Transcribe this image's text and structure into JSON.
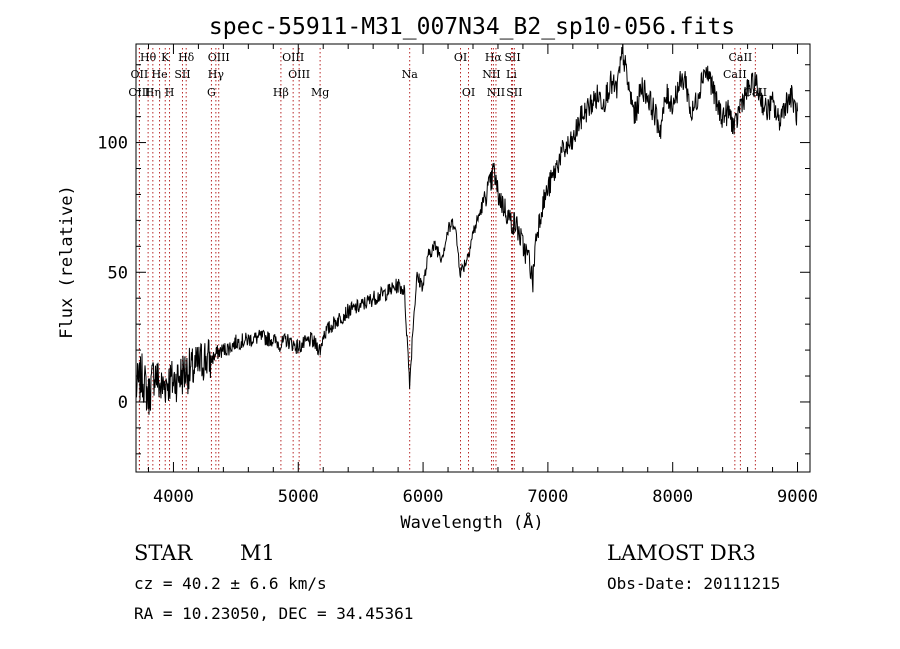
{
  "chart_data": {
    "type": "line",
    "title": "spec-55911-M31_007N34_B2_sp10-056.fits",
    "xlabel": "Wavelength (Å)",
    "ylabel": "Flux (relative)",
    "xlim": [
      3700,
      9100
    ],
    "ylim": [
      -27,
      138
    ],
    "x_ticks": [
      4000,
      5000,
      6000,
      7000,
      8000,
      9000
    ],
    "x_tick_labels": [
      "4000",
      "5000",
      "6000",
      "7000",
      "8000",
      "9000"
    ],
    "y_ticks": [
      0,
      50,
      100
    ],
    "y_tick_labels": [
      "0",
      "50",
      "100"
    ],
    "series": [
      {
        "name": "flux",
        "x": [
          3700,
          3750,
          3800,
          3850,
          3900,
          3950,
          4000,
          4050,
          4100,
          4150,
          4200,
          4250,
          4300,
          4350,
          4400,
          4450,
          4500,
          4600,
          4700,
          4800,
          4861,
          4900,
          5000,
          5100,
          5180,
          5200,
          5300,
          5400,
          5500,
          5600,
          5700,
          5800,
          5850,
          5893,
          5920,
          5950,
          6000,
          6050,
          6100,
          6150,
          6200,
          6250,
          6300,
          6350,
          6400,
          6450,
          6500,
          6550,
          6563,
          6600,
          6650,
          6700,
          6750,
          6800,
          6850,
          6880,
          6900,
          6950,
          7000,
          7050,
          7100,
          7150,
          7200,
          7250,
          7300,
          7350,
          7400,
          7450,
          7500,
          7550,
          7600,
          7650,
          7700,
          7750,
          7800,
          7850,
          7900,
          7950,
          8000,
          8050,
          8100,
          8150,
          8200,
          8250,
          8300,
          8350,
          8400,
          8450,
          8498,
          8542,
          8600,
          8662,
          8700,
          8750,
          8800,
          8850,
          8900,
          8950,
          9000
        ],
        "y": [
          5,
          10,
          2,
          12,
          5,
          8,
          8,
          10,
          12,
          12,
          14,
          17,
          16,
          19,
          20,
          21,
          23,
          24,
          25,
          24,
          22,
          24,
          21,
          24,
          20,
          26,
          31,
          35,
          37,
          40,
          42,
          45,
          43,
          7,
          30,
          48,
          45,
          58,
          60,
          56,
          66,
          70,
          50,
          55,
          65,
          72,
          80,
          85,
          90,
          80,
          75,
          70,
          68,
          60,
          55,
          46,
          62,
          75,
          82,
          88,
          95,
          98,
          100,
          108,
          112,
          115,
          118,
          116,
          123,
          120,
          135,
          120,
          110,
          122,
          118,
          112,
          105,
          118,
          115,
          122,
          125,
          110,
          118,
          128,
          125,
          115,
          110,
          112,
          105,
          115,
          120,
          123,
          118,
          112,
          115,
          108,
          115,
          118,
          110
        ]
      }
    ],
    "line_marks": [
      {
        "label": "Hθ",
        "x": 3797,
        "row": 0
      },
      {
        "label": "OII",
        "x": 3727,
        "row": 1
      },
      {
        "label": "OIII",
        "x": 3727,
        "row": 2
      },
      {
        "label": "He",
        "x": 3889,
        "row": 1
      },
      {
        "label": "Hη",
        "x": 3835,
        "row": 2
      },
      {
        "label": "K",
        "x": 3934,
        "row": 0
      },
      {
        "label": "H",
        "x": 3969,
        "row": 2
      },
      {
        "label": "SII",
        "x": 4072,
        "row": 1
      },
      {
        "label": "Hδ",
        "x": 4102,
        "row": 0
      },
      {
        "label": "OIII",
        "x": 4363,
        "row": 0
      },
      {
        "label": "Hγ",
        "x": 4340,
        "row": 1
      },
      {
        "label": "G",
        "x": 4304,
        "row": 2
      },
      {
        "label": "OIII",
        "x": 4959,
        "row": 0
      },
      {
        "label": "OIII",
        "x": 5007,
        "row": 1
      },
      {
        "label": "Hβ",
        "x": 4861,
        "row": 2
      },
      {
        "label": "Mg",
        "x": 5175,
        "row": 2
      },
      {
        "label": "Na",
        "x": 5893,
        "row": 1
      },
      {
        "label": "OI",
        "x": 6300,
        "row": 0
      },
      {
        "label": "OI",
        "x": 6364,
        "row": 2
      },
      {
        "label": "Hα",
        "x": 6563,
        "row": 0
      },
      {
        "label": "NII",
        "x": 6548,
        "row": 1
      },
      {
        "label": "NII",
        "x": 6584,
        "row": 2
      },
      {
        "label": "SII",
        "x": 6717,
        "row": 0
      },
      {
        "label": "Li",
        "x": 6708,
        "row": 1
      },
      {
        "label": "SII",
        "x": 6731,
        "row": 2
      },
      {
        "label": "CaII",
        "x": 8542,
        "row": 0
      },
      {
        "label": "CaII",
        "x": 8498,
        "row": 1
      },
      {
        "label": "CaII",
        "x": 8662,
        "row": 2
      }
    ],
    "grid": false,
    "legend": "none"
  },
  "info": {
    "object_class": "STAR",
    "subclass": "M1",
    "survey": "LAMOST DR3",
    "redshift": "cz = 40.2 ± 6.6 km/s",
    "obs_date": "Obs-Date: 20111215",
    "coords": "RA =  10.23050, DEC =  34.45361"
  }
}
